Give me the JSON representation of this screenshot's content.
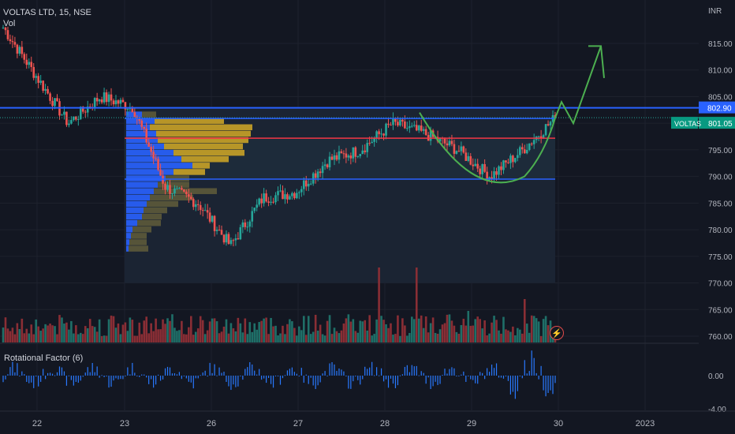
{
  "symbol": {
    "title": "VOLTAS LTD, 15, NSE",
    "sub": "Vol"
  },
  "indicator": {
    "name": "Rotational Factor (6)"
  },
  "currency": "INR",
  "price_axis": {
    "ticks": [
      "815.00",
      "810.00",
      "805.00",
      "800.00",
      "795.00",
      "790.00",
      "785.00",
      "780.00",
      "775.00",
      "770.00",
      "765.00",
      "760.00"
    ],
    "tick_values": [
      815,
      810,
      805,
      800,
      795,
      790,
      785,
      780,
      775,
      770,
      765,
      760
    ],
    "level_tag": "802.90",
    "last_tag": "801.05",
    "symbol_tag": "VOLTAS"
  },
  "indicator_axis": {
    "ticks": [
      "0.00",
      "-4.00"
    ]
  },
  "time_axis": {
    "labels": [
      "22",
      "23",
      "26",
      "27",
      "28",
      "29",
      "30",
      "2023"
    ]
  },
  "colors": {
    "bg": "#131722",
    "up": "#26a69a",
    "down": "#ef5350",
    "vol_up": "#1f6f68",
    "vol_down": "#8a2e35",
    "blue_line": "#2962ff",
    "red_line": "#f23645",
    "arrow": "#4caf50",
    "vp_blue": "#2962ff",
    "vp_gold": "#c9a227",
    "vp_grey": "#5d5a3a",
    "indicator_bar": "#2979ff",
    "tag_green": "#089981"
  },
  "chart_data": {
    "type": "candlestick",
    "timeframe": "15",
    "y_unit": "INR",
    "ylim": [
      758,
      818
    ],
    "levels": [
      {
        "price": 802.9,
        "color": "blue",
        "label": "802.90"
      },
      {
        "price": 800.9,
        "color": "blue"
      },
      {
        "price": 797.2,
        "color": "red"
      },
      {
        "price": 789.5,
        "color": "blue"
      }
    ],
    "last_price": 801.05,
    "ohlc_waypoints": [
      {
        "date": "22",
        "price": 818
      },
      {
        "date": "22",
        "price": 809
      },
      {
        "date": "22",
        "price": 800
      },
      {
        "date": "22",
        "price": 805
      },
      {
        "date": "23",
        "price": 803
      },
      {
        "date": "23",
        "price": 788
      },
      {
        "date": "23",
        "price": 785
      },
      {
        "date": "26",
        "price": 777
      },
      {
        "date": "26",
        "price": 786
      },
      {
        "date": "27",
        "price": 787
      },
      {
        "date": "27",
        "price": 793
      },
      {
        "date": "28",
        "price": 795
      },
      {
        "date": "28",
        "price": 800
      },
      {
        "date": "28",
        "price": 798
      },
      {
        "date": "29",
        "price": 795
      },
      {
        "date": "29",
        "price": 790
      },
      {
        "date": "29",
        "price": 795
      },
      {
        "date": "30",
        "price": 801
      }
    ],
    "projection": [
      {
        "date": "30",
        "price": 804
      },
      {
        "date": "30",
        "price": 800
      },
      {
        "date": "2023",
        "price": 815
      }
    ]
  }
}
